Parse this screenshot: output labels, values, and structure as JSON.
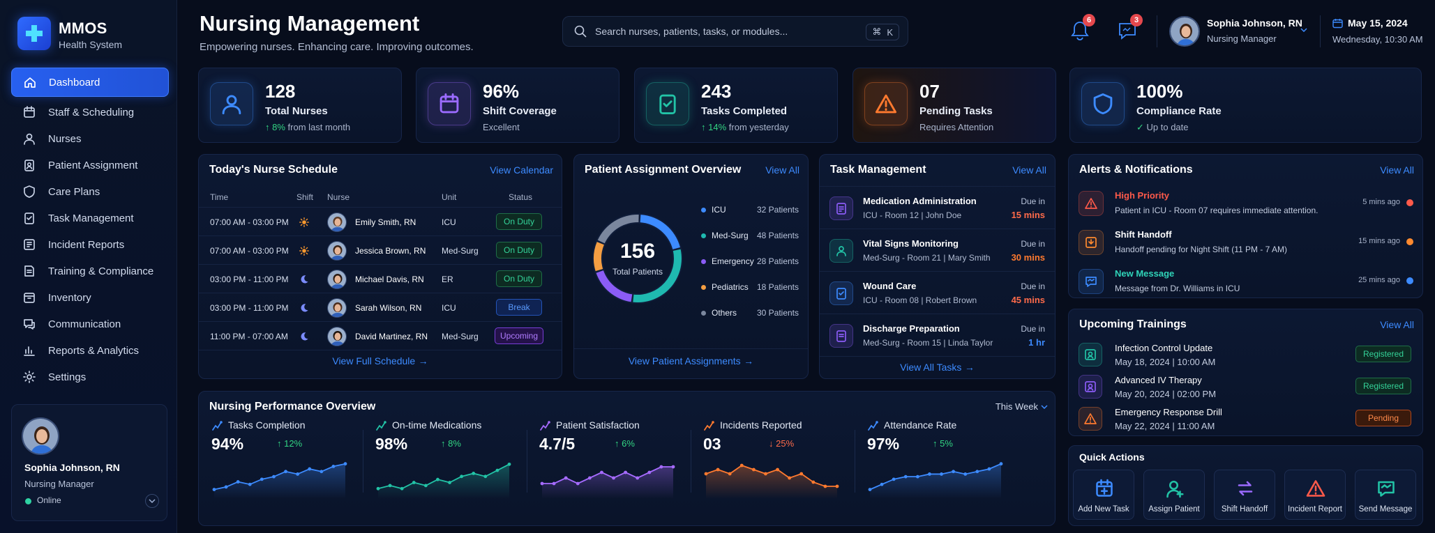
{
  "brand": {
    "name": "MMOS",
    "sub": "Health System"
  },
  "sidebar": {
    "items": [
      {
        "label": "Dashboard",
        "icon": "home-icon",
        "active": true
      },
      {
        "label": "Staff & Scheduling",
        "icon": "calendar-icon"
      },
      {
        "label": "Nurses",
        "icon": "users-icon"
      },
      {
        "label": "Patient Assignment",
        "icon": "clipboard-user-icon"
      },
      {
        "label": "Care Plans",
        "icon": "shield-icon"
      },
      {
        "label": "Task Management",
        "icon": "clipboard-check-icon"
      },
      {
        "label": "Incident Reports",
        "icon": "report-icon"
      },
      {
        "label": "Training & Compliance",
        "icon": "book-icon"
      },
      {
        "label": "Inventory",
        "icon": "box-icon"
      },
      {
        "label": "Communication",
        "icon": "chat-icon"
      },
      {
        "label": "Reports & Analytics",
        "icon": "chart-icon"
      },
      {
        "label": "Settings",
        "icon": "gear-icon"
      }
    ],
    "profile": {
      "name": "Sophia Johnson, RN",
      "role": "Nursing Manager",
      "status": "Online"
    }
  },
  "header": {
    "title": "Nursing Management",
    "subtitle": "Empowering nurses. Enhancing care. Improving outcomes.",
    "search_placeholder": "Search nurses, patients, tasks, or modules...",
    "shortcut_mod": "⌘",
    "shortcut_key": "K",
    "notif_count": "6",
    "message_count": "3",
    "user": {
      "name": "Sophia Johnson, RN",
      "role": "Nursing Manager"
    },
    "date": "May 15, 2024",
    "datetime": "Wednesday, 10:30 AM"
  },
  "stats": [
    {
      "value": "128",
      "label": "Total Nurses",
      "delta": "8%",
      "note": "from last month",
      "color": "#3d8bff"
    },
    {
      "value": "96%",
      "label": "Shift Coverage",
      "note": "Excellent",
      "color": "#9b6bff"
    },
    {
      "value": "243",
      "label": "Tasks Completed",
      "delta": "14%",
      "note": "from yesterday",
      "color": "#22c3a6"
    },
    {
      "value": "07",
      "label": "Pending Tasks",
      "note": "Requires Attention",
      "color": "#ff7a2f"
    },
    {
      "value": "100%",
      "label": "Compliance Rate",
      "note": "Up to date",
      "color": "#3d8bff"
    }
  ],
  "schedule": {
    "title": "Today's Nurse Schedule",
    "link": "View Calendar",
    "headers": [
      "Time",
      "Shift",
      "Nurse",
      "Unit",
      "Status"
    ],
    "rows": [
      {
        "time": "07:00 AM - 03:00 PM",
        "shift": "day",
        "nurse": "Emily Smith, RN",
        "unit": "ICU",
        "status": "On Duty",
        "kind": "onduty"
      },
      {
        "time": "07:00 AM - 03:00 PM",
        "shift": "day",
        "nurse": "Jessica Brown, RN",
        "unit": "Med-Surg",
        "status": "On Duty",
        "kind": "onduty"
      },
      {
        "time": "03:00 PM - 11:00 PM",
        "shift": "night",
        "nurse": "Michael Davis, RN",
        "unit": "ER",
        "status": "On Duty",
        "kind": "onduty"
      },
      {
        "time": "03:00 PM - 11:00 PM",
        "shift": "night",
        "nurse": "Sarah Wilson, RN",
        "unit": "ICU",
        "status": "Break",
        "kind": "break"
      },
      {
        "time": "11:00 PM - 07:00 AM",
        "shift": "night",
        "nurse": "David Martinez, RN",
        "unit": "Med-Surg",
        "status": "Upcoming",
        "kind": "upcoming"
      }
    ],
    "footer_link": "View Full Schedule"
  },
  "assignment": {
    "title": "Patient Assignment Overview",
    "link": "View All",
    "total": "156",
    "total_label": "Total Patients",
    "segments": [
      {
        "name": "ICU",
        "value": 32,
        "label": "32 Patients",
        "color": "#3d8bff"
      },
      {
        "name": "Med-Surg",
        "value": 48,
        "label": "48 Patients",
        "color": "#1fb9b0"
      },
      {
        "name": "Emergency",
        "value": 28,
        "label": "28 Patients",
        "color": "#8b5cf6"
      },
      {
        "name": "Pediatrics",
        "value": 18,
        "label": "18 Patients",
        "color": "#f59e42"
      },
      {
        "name": "Others",
        "value": 30,
        "label": "30 Patients",
        "color": "#7b879e"
      }
    ],
    "footer_link": "View Patient Assignments"
  },
  "tasks": {
    "title": "Task Management",
    "link": "View All",
    "items": [
      {
        "title": "Medication Administration",
        "sub": "ICU - Room 12 | John Doe",
        "due_label": "Due in",
        "due": "15 mins",
        "color": "#ff6b4a",
        "icon": "pill-clipboard-icon",
        "tint": "#8b5cf6"
      },
      {
        "title": "Vital Signs Monitoring",
        "sub": "Med-Surg - Room 21 | Mary Smith",
        "due_label": "Due in",
        "due": "30 mins",
        "color": "#ff7a2f",
        "icon": "heart-user-icon",
        "tint": "#22c3a6"
      },
      {
        "title": "Wound Care",
        "sub": "ICU - Room 08 | Robert Brown",
        "due_label": "Due in",
        "due": "45 mins",
        "color": "#ff6b4a",
        "icon": "bandage-icon",
        "tint": "#3d8bff"
      },
      {
        "title": "Discharge Preparation",
        "sub": "Med-Surg - Room 15 | Linda Taylor",
        "due_label": "Due in",
        "due": "1 hr",
        "color": "#3d8bff",
        "icon": "clipboard-icon",
        "tint": "#8b5cf6"
      }
    ],
    "footer_link": "View All Tasks"
  },
  "alerts": {
    "title": "Alerts & Notifications",
    "link": "View All",
    "items": [
      {
        "title": "High Priority",
        "msg": "Patient in ICU - Room 07 requires immediate attention.",
        "time": "5 mins ago",
        "color": "#ff5a4a",
        "dot": "#ff5a4a",
        "icon": "warning-icon"
      },
      {
        "title": "Shift Handoff",
        "msg": "Handoff pending for Night Shift (11 PM - 7 AM)",
        "time": "15 mins ago",
        "color": "#ffffff",
        "dot": "#ff8a2f",
        "icon": "handoff-icon"
      },
      {
        "title": "New Message",
        "msg": "Message from Dr. Williams in ICU",
        "time": "25 mins ago",
        "color": "#2fd3b8",
        "dot": "#3d8bff",
        "icon": "message-icon"
      }
    ]
  },
  "trainings": {
    "title": "Upcoming Trainings",
    "link": "View All",
    "items": [
      {
        "title": "Infection Control Update",
        "date": "May 18, 2024 | 10:00 AM",
        "status": "Registered",
        "kind": "registered",
        "tint": "#22c3a6"
      },
      {
        "title": "Advanced IV Therapy",
        "date": "May 20, 2024 | 02:00 PM",
        "status": "Registered",
        "kind": "registered",
        "tint": "#8b5cf6"
      },
      {
        "title": "Emergency Response Drill",
        "date": "May 22, 2024 | 11:00 AM",
        "status": "Pending",
        "kind": "pending",
        "tint": "#ff7a2f"
      }
    ]
  },
  "quick_actions": {
    "title": "Quick Actions",
    "items": [
      {
        "label": "Add New Task",
        "icon": "calendar-plus-icon",
        "color": "#3d8bff"
      },
      {
        "label": "Assign Patient",
        "icon": "user-plus-icon",
        "color": "#22c3a6"
      },
      {
        "label": "Shift Handoff",
        "icon": "swap-icon",
        "color": "#9b6bff"
      },
      {
        "label": "Incident Report",
        "icon": "warning-icon",
        "color": "#ff5a4a"
      },
      {
        "label": "Send Message",
        "icon": "message-icon",
        "color": "#22c3a6"
      }
    ]
  },
  "performance": {
    "title": "Nursing Performance Overview",
    "period": "This Week",
    "metrics": [
      {
        "title": "Tasks Completion",
        "value": "94%",
        "delta": "12%",
        "trend": "up",
        "color": "#3d8bff",
        "series": [
          3,
          4,
          6,
          5,
          7,
          8,
          10,
          9,
          11,
          10,
          12,
          13
        ]
      },
      {
        "title": "On-time Medications",
        "value": "98%",
        "delta": "8%",
        "trend": "up",
        "color": "#22c3a6",
        "series": [
          4,
          5,
          4,
          6,
          5,
          7,
          6,
          8,
          9,
          8,
          10,
          12
        ]
      },
      {
        "title": "Patient Satisfaction",
        "value": "4.7/5",
        "delta": "6%",
        "trend": "up",
        "color": "#a66bff",
        "series": [
          6,
          6,
          7,
          6,
          7,
          8,
          7,
          8,
          7,
          8,
          9,
          9
        ]
      },
      {
        "title": "Incidents Reported",
        "value": "03",
        "delta": "25%",
        "trend": "down",
        "color": "#ff7a2f",
        "series": [
          9,
          10,
          9,
          11,
          10,
          9,
          10,
          8,
          9,
          7,
          6,
          6
        ]
      },
      {
        "title": "Attendance Rate",
        "value": "97%",
        "delta": "5%",
        "trend": "up",
        "color": "#3d8bff",
        "series": [
          3,
          5,
          7,
          8,
          8,
          9,
          9,
          10,
          9,
          10,
          11,
          13
        ]
      }
    ]
  }
}
